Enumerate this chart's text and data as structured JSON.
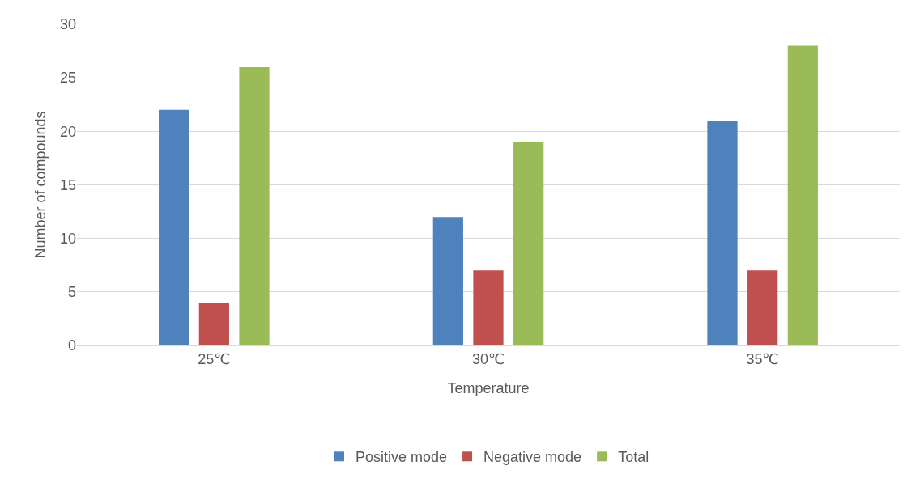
{
  "chart_data": {
    "type": "bar",
    "xlabel": "Temperature",
    "ylabel": "Number of compounds",
    "categories": [
      "25℃",
      "30℃",
      "35℃"
    ],
    "series": [
      {
        "name": "Positive mode",
        "color": "#4f81bd",
        "values": [
          22,
          12,
          21
        ]
      },
      {
        "name": "Negative mode",
        "color": "#c0504d",
        "values": [
          4,
          7,
          7
        ]
      },
      {
        "name": "Total",
        "color": "#9bbb59",
        "values": [
          26,
          19,
          28
        ]
      }
    ],
    "ylim": [
      0,
      30
    ],
    "yticks": [
      0,
      5,
      10,
      15,
      20,
      25,
      30
    ],
    "grid": "y",
    "legend": "bottom"
  }
}
